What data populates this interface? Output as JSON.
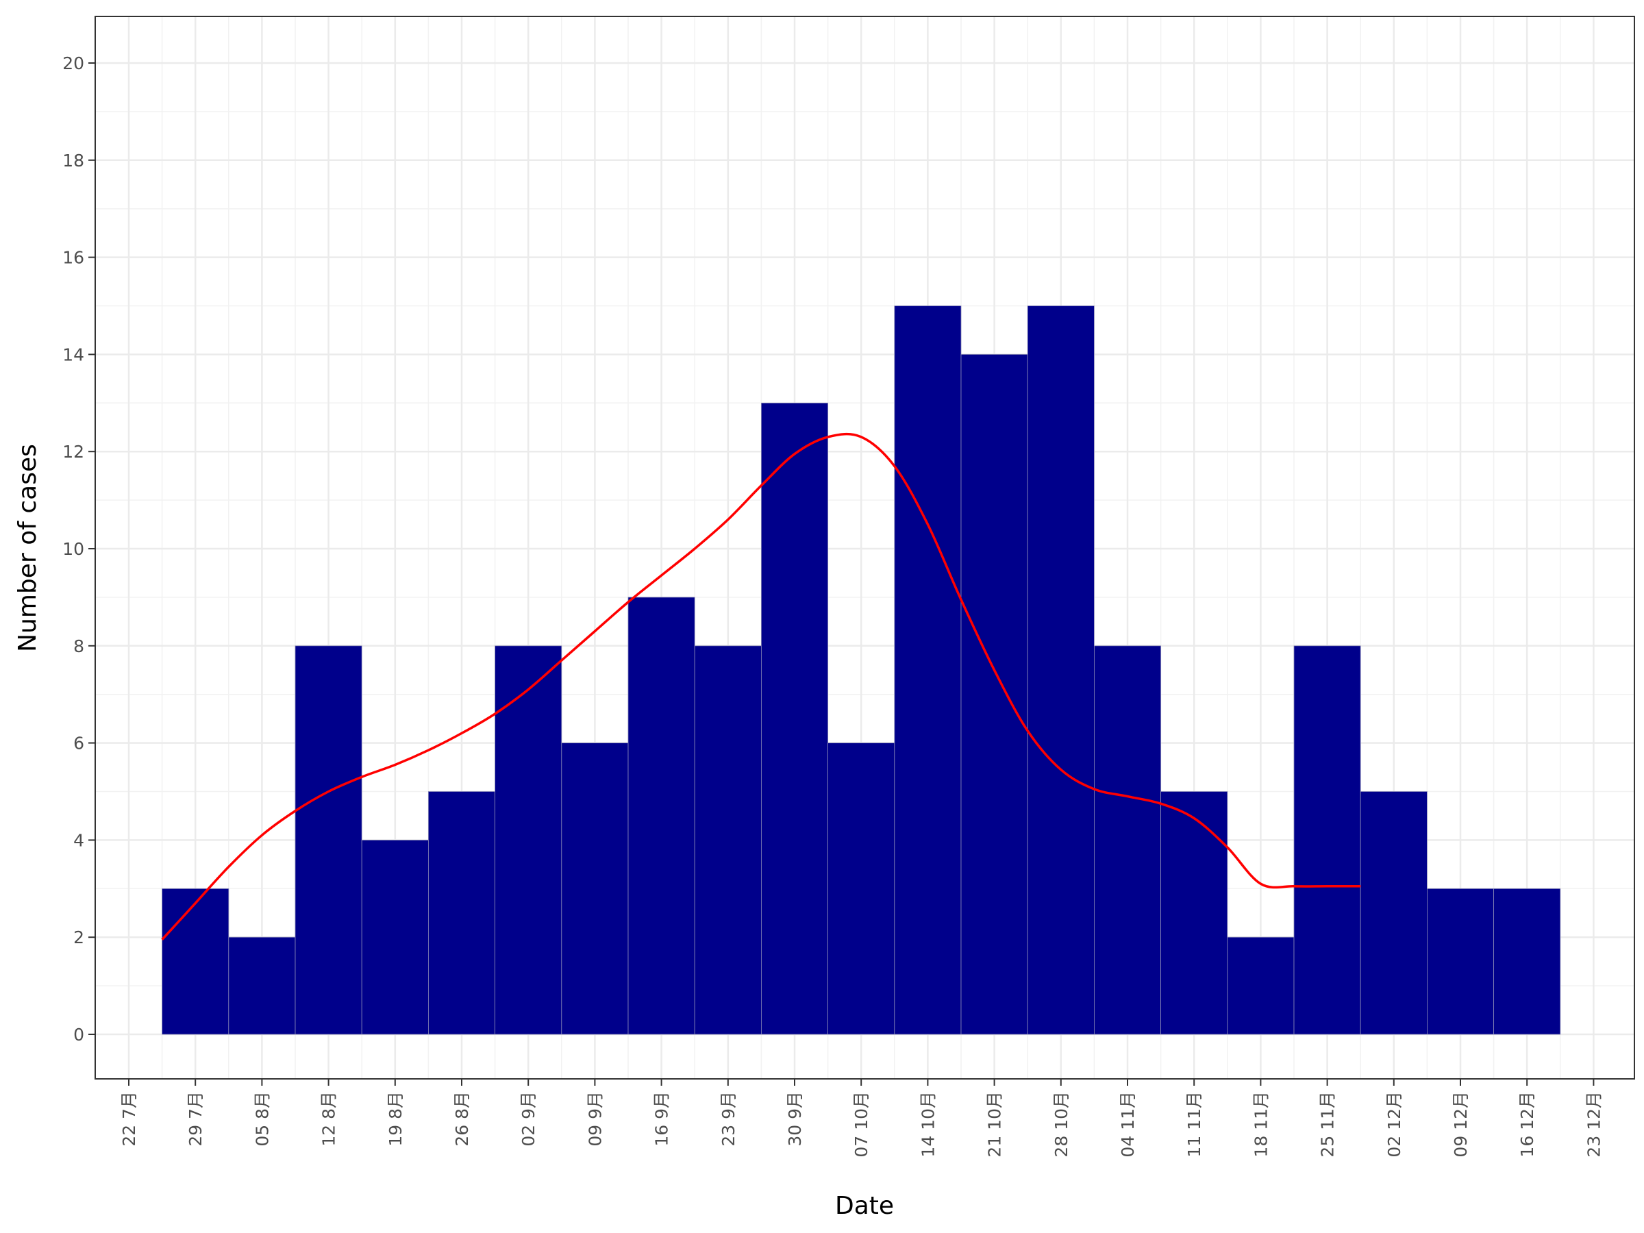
{
  "chart_data": {
    "type": "bar",
    "title": "",
    "xlabel": "Date",
    "ylabel": "Number of cases",
    "ylim": [
      -1,
      21
    ],
    "yticks": [
      0,
      2,
      4,
      6,
      8,
      10,
      12,
      14,
      16,
      18,
      20
    ],
    "x_tick_labels": [
      "22 7月",
      "29 7月",
      "05 8月",
      "12 8月",
      "19 8月",
      "26 8月",
      "02 9月",
      "09 9月",
      "16 9月",
      "23 9月",
      "30 9月",
      "07 10月",
      "14 10月",
      "21 10月",
      "28 10月",
      "04 11月",
      "11 11月",
      "18 11月",
      "25 11月",
      "02 12月",
      "09 12月",
      "16 12月",
      "23 12月"
    ],
    "bins_start_week": 0.5,
    "bin_width_weeks": 1,
    "values": [
      3,
      2,
      8,
      4,
      5,
      8,
      6,
      9,
      8,
      13,
      6,
      15,
      14,
      15,
      8,
      5,
      2,
      8,
      5,
      3,
      3
    ],
    "bar_color": "#00008B",
    "trend_line": {
      "color": "#FF0000",
      "x_weeks": [
        0.5,
        1.0,
        1.5,
        2.0,
        2.5,
        3.0,
        3.5,
        4.0,
        4.5,
        5.0,
        5.5,
        6.0,
        6.5,
        7.0,
        7.5,
        8.0,
        8.5,
        9.0,
        9.5,
        10.0,
        10.5,
        11.0,
        11.5,
        12.0,
        12.5,
        13.0,
        13.5,
        14.0,
        14.5,
        15.0,
        15.5,
        16.0,
        16.5,
        17.0,
        17.5,
        18.0,
        18.5,
        19.0,
        19.5,
        20.0,
        20.5
      ],
      "y": [
        1.95,
        2.7,
        3.45,
        4.1,
        4.6,
        5.0,
        5.3,
        5.55,
        5.85,
        6.2,
        6.6,
        7.1,
        7.7,
        8.3,
        8.9,
        9.45,
        10.0,
        10.6,
        11.3,
        11.95,
        12.3,
        12.3,
        11.7,
        10.5,
        8.95,
        7.5,
        6.25,
        5.45,
        5.05,
        4.9,
        4.75,
        4.45,
        3.85,
        3.1,
        3.05,
        3.05,
        3.05,
        3.05,
        3.05,
        3.05,
        3.05
      ],
      "x_end_weeks": 18.5
    },
    "grid": true,
    "legend": "none"
  }
}
